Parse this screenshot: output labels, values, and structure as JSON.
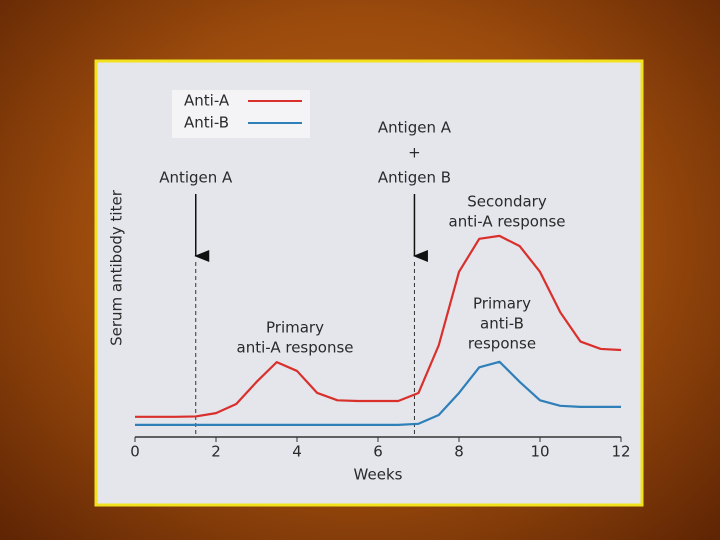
{
  "chart_data": {
    "type": "line",
    "xlabel": "Weeks",
    "ylabel": "Serum antibody titer",
    "xlim": [
      0,
      12
    ],
    "xticks": [
      0,
      2,
      4,
      6,
      8,
      10,
      12
    ],
    "ylim": [
      0,
      100
    ],
    "x": [
      0,
      0.5,
      1,
      1.5,
      2,
      2.5,
      3,
      3.5,
      4,
      4.5,
      5,
      5.5,
      6,
      6.5,
      7,
      7.5,
      8,
      8.5,
      9,
      9.5,
      10,
      10.5,
      11,
      11.5,
      12
    ],
    "series": [
      {
        "name": "Anti-A",
        "color": "#d9302c",
        "values": [
          5.5,
          5.5,
          5.5,
          5.6,
          6.5,
          9,
          15,
          20.4,
          18,
          12,
          10,
          9.8,
          9.8,
          9.8,
          12,
          25,
          45,
          54,
          54.8,
          52,
          45,
          34,
          26,
          24,
          23.7
        ]
      },
      {
        "name": "Anti-B",
        "color": "#2f7fb8",
        "values": [
          3.3,
          3.3,
          3.3,
          3.3,
          3.3,
          3.3,
          3.3,
          3.3,
          3.3,
          3.3,
          3.3,
          3.3,
          3.3,
          3.3,
          3.6,
          6,
          12,
          19,
          20.5,
          15,
          10,
          8.5,
          8.2,
          8.2,
          8.2
        ]
      }
    ],
    "events": [
      {
        "x": 1.5,
        "lines": [
          "Antigen A"
        ]
      },
      {
        "x": 6.9,
        "lines": [
          "Antigen A",
          "+",
          "Antigen B"
        ]
      }
    ],
    "annotations": [
      {
        "lines": [
          "Primary",
          "anti-A response"
        ]
      },
      {
        "lines": [
          "Secondary",
          "anti-A response"
        ]
      },
      {
        "lines": [
          "Primary",
          "anti-B",
          "response"
        ]
      }
    ]
  }
}
